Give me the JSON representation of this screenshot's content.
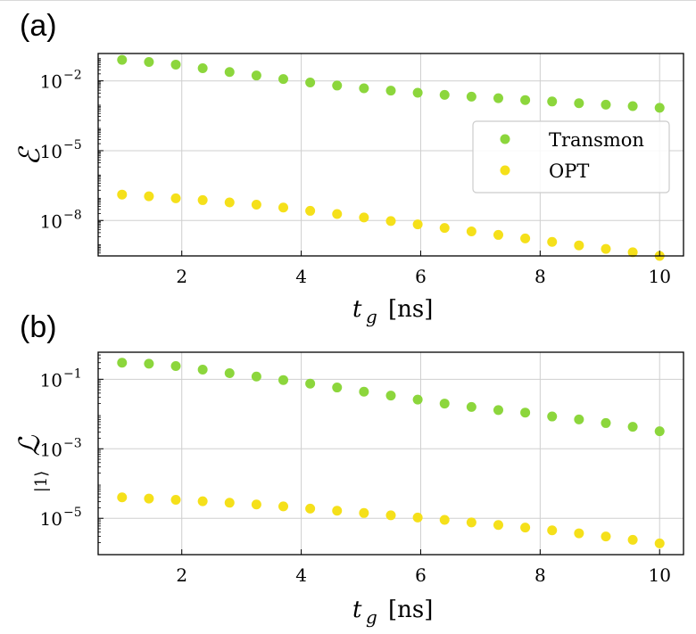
{
  "panels": [
    {
      "label": "(a)",
      "ylabel": "ℰ",
      "xlabel_var": "t",
      "xlabel_sub": "g",
      "xlabel_unit": "[ns]"
    },
    {
      "label": "(b)",
      "ylabel": "ℒ",
      "ylabel_sub": "|1⟩",
      "xlabel_var": "t",
      "xlabel_sub": "g",
      "xlabel_unit": "[ns]"
    }
  ],
  "legend": {
    "transmon": "Transmon",
    "opt": "OPT"
  },
  "colors": {
    "transmon": "#8cd63c",
    "opt": "#f5e01a"
  },
  "chart_data": [
    {
      "type": "scatter",
      "panel": "(a)",
      "xlabel": "t_g [ns]",
      "ylabel": "ℰ",
      "yscale": "log",
      "xlim": [
        0.6,
        10.4
      ],
      "ylim": [
        3e-10,
        0.15
      ],
      "xticks": [
        2,
        4,
        6,
        8,
        10
      ],
      "yticks": [
        0.01,
        1e-05,
        1e-08
      ],
      "ytick_labels": [
        "10^-2",
        "10^-5",
        "10^-8"
      ],
      "grid": true,
      "legend_position": "center-right",
      "x": [
        1.0,
        1.45,
        1.9,
        2.35,
        2.8,
        3.25,
        3.7,
        4.15,
        4.6,
        5.05,
        5.5,
        5.95,
        6.4,
        6.85,
        7.3,
        7.75,
        8.2,
        8.65,
        9.1,
        9.55,
        10.0
      ],
      "series": [
        {
          "name": "Transmon",
          "values": [
            0.08,
            0.065,
            0.05,
            0.035,
            0.024,
            0.017,
            0.012,
            0.0085,
            0.0063,
            0.0048,
            0.0038,
            0.0031,
            0.0025,
            0.0021,
            0.0018,
            0.0015,
            0.0013,
            0.0011,
            0.00095,
            0.00082,
            0.0007
          ]
        },
        {
          "name": "OPT",
          "values": [
            1.3e-07,
            1.1e-07,
            9e-08,
            7.5e-08,
            6e-08,
            4.8e-08,
            3.6e-08,
            2.6e-08,
            1.9e-08,
            1.35e-08,
            9.5e-09,
            6.8e-09,
            4.8e-09,
            3.4e-09,
            2.4e-09,
            1.7e-09,
            1.2e-09,
            8.5e-10,
            6e-10,
            4.3e-10,
            3e-10
          ]
        }
      ]
    },
    {
      "type": "scatter",
      "panel": "(b)",
      "xlabel": "t_g [ns]",
      "ylabel": "ℒ_|1⟩",
      "yscale": "log",
      "xlim": [
        0.6,
        10.4
      ],
      "ylim": [
        9e-07,
        0.6
      ],
      "xticks": [
        2,
        4,
        6,
        8,
        10
      ],
      "yticks": [
        0.1,
        0.001,
        1e-05
      ],
      "ytick_labels": [
        "10^-1",
        "10^-3",
        "10^-5"
      ],
      "grid": true,
      "x": [
        1.0,
        1.45,
        1.9,
        2.35,
        2.8,
        3.25,
        3.7,
        4.15,
        4.6,
        5.05,
        5.5,
        5.95,
        6.4,
        6.85,
        7.3,
        7.75,
        8.2,
        8.65,
        9.1,
        9.55,
        10.0
      ],
      "series": [
        {
          "name": "Transmon",
          "values": [
            0.3,
            0.28,
            0.24,
            0.19,
            0.15,
            0.12,
            0.095,
            0.075,
            0.058,
            0.044,
            0.034,
            0.026,
            0.02,
            0.016,
            0.013,
            0.011,
            0.0085,
            0.007,
            0.0055,
            0.0043,
            0.0032
          ]
        },
        {
          "name": "OPT",
          "values": [
            4e-05,
            3.7e-05,
            3.4e-05,
            3.1e-05,
            2.8e-05,
            2.5e-05,
            2.2e-05,
            1.9e-05,
            1.65e-05,
            1.42e-05,
            1.22e-05,
            1.05e-05,
            9e-06,
            7.6e-06,
            6.4e-06,
            5.4e-06,
            4.5e-06,
            3.7e-06,
            3e-06,
            2.4e-06,
            1.9e-06
          ]
        }
      ]
    }
  ]
}
